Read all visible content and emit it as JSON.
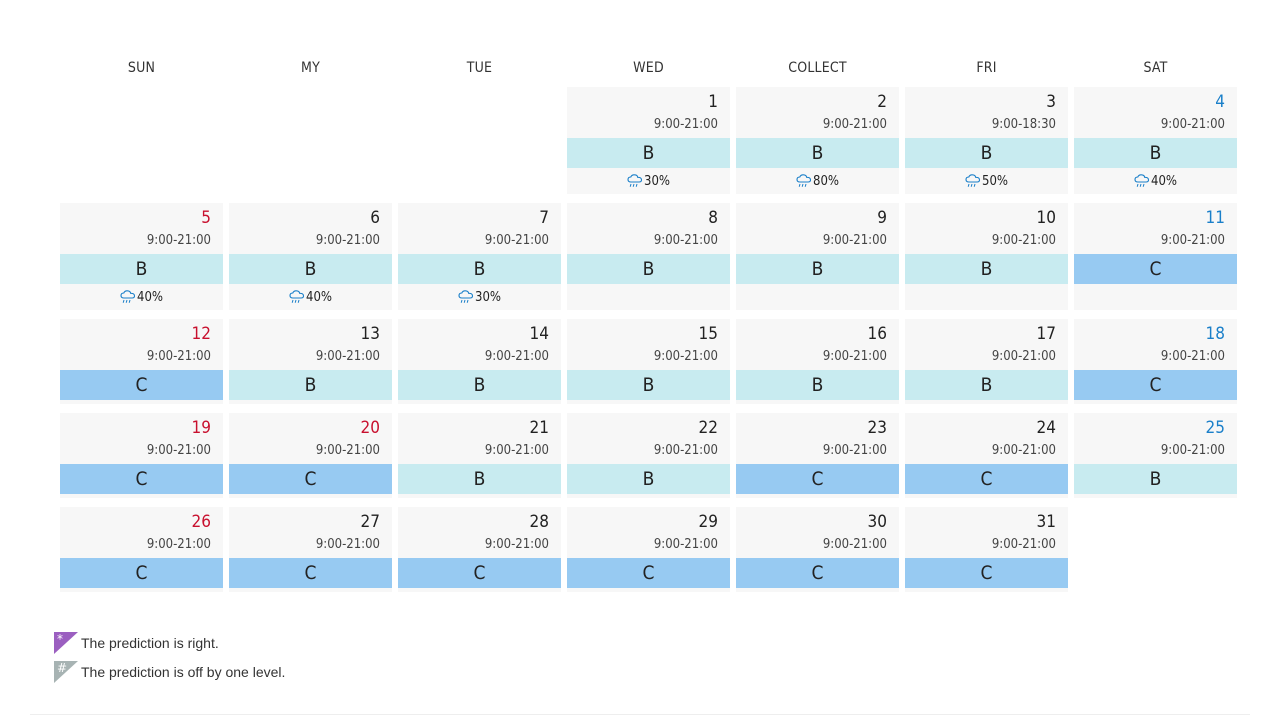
{
  "weekdays": [
    "SUN",
    "MY",
    "TUE",
    "WED",
    "COLLECT",
    "FRI",
    "SAT"
  ],
  "weeks": [
    [
      {
        "empty": true
      },
      {
        "empty": true
      },
      {
        "empty": true
      },
      {
        "day": "1",
        "hours": "9:00-21:00",
        "level": "B",
        "rain": "30%"
      },
      {
        "day": "2",
        "hours": "9:00-21:00",
        "level": "B",
        "rain": "80%"
      },
      {
        "day": "3",
        "hours": "9:00-18:30",
        "level": "B",
        "rain": "50%"
      },
      {
        "day": "4",
        "hours": "9:00-21:00",
        "level": "B",
        "rain": "40%",
        "color": "sat"
      }
    ],
    [
      {
        "day": "5",
        "hours": "9:00-21:00",
        "level": "B",
        "rain": "40%",
        "color": "sun"
      },
      {
        "day": "6",
        "hours": "9:00-21:00",
        "level": "B",
        "rain": "40%"
      },
      {
        "day": "7",
        "hours": "9:00-21:00",
        "level": "B",
        "rain": "30%"
      },
      {
        "day": "8",
        "hours": "9:00-21:00",
        "level": "B",
        "rain": ""
      },
      {
        "day": "9",
        "hours": "9:00-21:00",
        "level": "B",
        "rain": ""
      },
      {
        "day": "10",
        "hours": "9:00-21:00",
        "level": "B",
        "rain": ""
      },
      {
        "day": "11",
        "hours": "9:00-21:00",
        "level": "C",
        "rain": "",
        "color": "sat"
      }
    ],
    [
      {
        "day": "12",
        "hours": "9:00-21:00",
        "level": "C",
        "color": "sun"
      },
      {
        "day": "13",
        "hours": "9:00-21:00",
        "level": "B"
      },
      {
        "day": "14",
        "hours": "9:00-21:00",
        "level": "B"
      },
      {
        "day": "15",
        "hours": "9:00-21:00",
        "level": "B"
      },
      {
        "day": "16",
        "hours": "9:00-21:00",
        "level": "B"
      },
      {
        "day": "17",
        "hours": "9:00-21:00",
        "level": "B"
      },
      {
        "day": "18",
        "hours": "9:00-21:00",
        "level": "C",
        "color": "sat"
      }
    ],
    [
      {
        "day": "19",
        "hours": "9:00-21:00",
        "level": "C",
        "color": "sun"
      },
      {
        "day": "20",
        "hours": "9:00-21:00",
        "level": "C",
        "color": "sun"
      },
      {
        "day": "21",
        "hours": "9:00-21:00",
        "level": "B"
      },
      {
        "day": "22",
        "hours": "9:00-21:00",
        "level": "B"
      },
      {
        "day": "23",
        "hours": "9:00-21:00",
        "level": "C"
      },
      {
        "day": "24",
        "hours": "9:00-21:00",
        "level": "C"
      },
      {
        "day": "25",
        "hours": "9:00-21:00",
        "level": "B",
        "color": "sat"
      }
    ],
    [
      {
        "day": "26",
        "hours": "9:00-21:00",
        "level": "C",
        "color": "sun"
      },
      {
        "day": "27",
        "hours": "9:00-21:00",
        "level": "C"
      },
      {
        "day": "28",
        "hours": "9:00-21:00",
        "level": "C"
      },
      {
        "day": "29",
        "hours": "9:00-21:00",
        "level": "C"
      },
      {
        "day": "30",
        "hours": "9:00-21:00",
        "level": "C"
      },
      {
        "day": "31",
        "hours": "9:00-21:00",
        "level": "C"
      },
      {
        "empty": true
      }
    ]
  ],
  "legend": [
    {
      "symbol": "*",
      "text": "The prediction is right.",
      "color": "#9b5fc0",
      "icon": "purple-triangle-icon"
    },
    {
      "symbol": "#",
      "text": "The prediction is off by one level.",
      "color": "#a7b3b3",
      "icon": "gray-triangle-icon"
    }
  ],
  "colors": {
    "level_B": "#c8ebf0",
    "level_C": "#97caf2",
    "sunday": "#c8102e",
    "saturday": "#1a7fc9",
    "rain_icon": "#1a7fc9"
  },
  "icons": {
    "rain": "rain-cloud-icon"
  }
}
